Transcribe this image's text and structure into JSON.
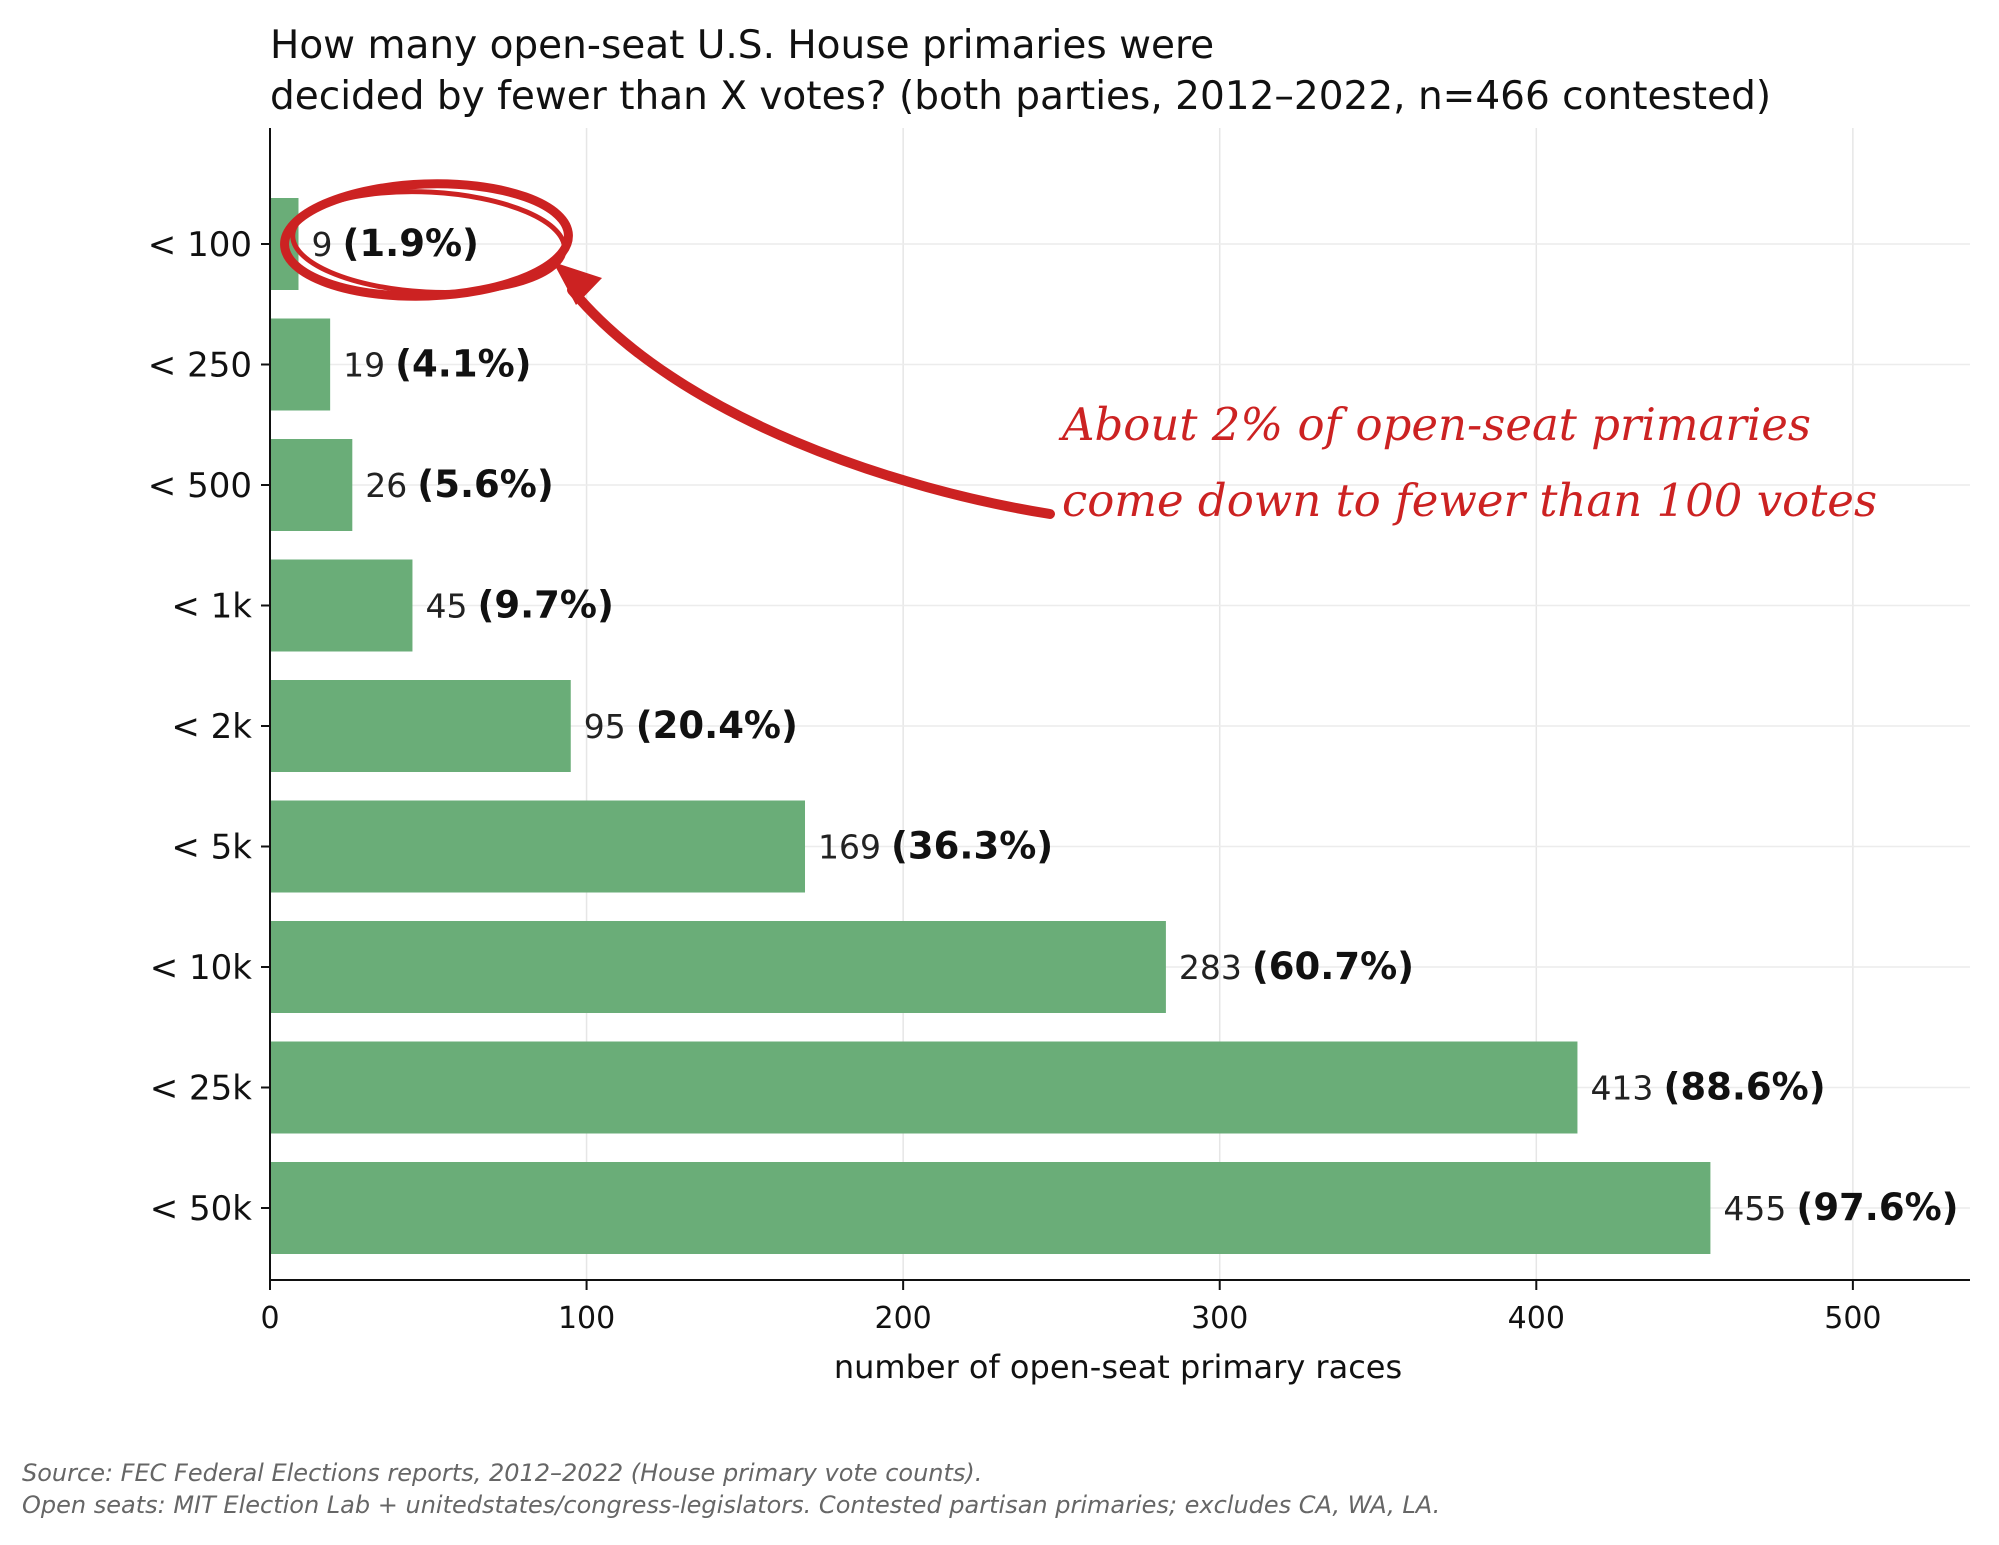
{
  "title": {
    "line1": "How many open-seat U.S. House primaries were",
    "line2": "decided by fewer than X votes?  (both parties, 2012–2022, n=466 contested)"
  },
  "chart_data": {
    "type": "bar",
    "orientation": "horizontal",
    "categories": [
      "< 100",
      "< 250",
      "< 500",
      "< 1k",
      "< 2k",
      "< 5k",
      "< 10k",
      "< 25k",
      "< 50k"
    ],
    "values": [
      9,
      19,
      26,
      45,
      95,
      169,
      283,
      413,
      455
    ],
    "percent_labels": [
      "(1.9%)",
      "(4.1%)",
      "(5.6%)",
      "(9.7%)",
      "(20.4%)",
      "(36.3%)",
      "(60.7%)",
      "(88.6%)",
      "(97.6%)"
    ],
    "xlabel": "number of open-seat primary races",
    "xlim": [
      0,
      537
    ],
    "xticks": [
      0,
      100,
      200,
      300,
      400,
      500
    ],
    "grid": true,
    "bar_color": "#6aad78",
    "annotation": {
      "lines": [
        "About 2% of open-seat primaries",
        "come down to fewer than 100 votes"
      ],
      "color": "#cc2222",
      "target_category": "< 100"
    }
  },
  "source": {
    "line1": "Source: FEC Federal Elections reports, 2012–2022 (House primary vote counts).",
    "line2": "Open seats: MIT Election Lab + unitedstates/congress-legislators. Contested partisan primaries; excludes CA, WA, LA."
  }
}
